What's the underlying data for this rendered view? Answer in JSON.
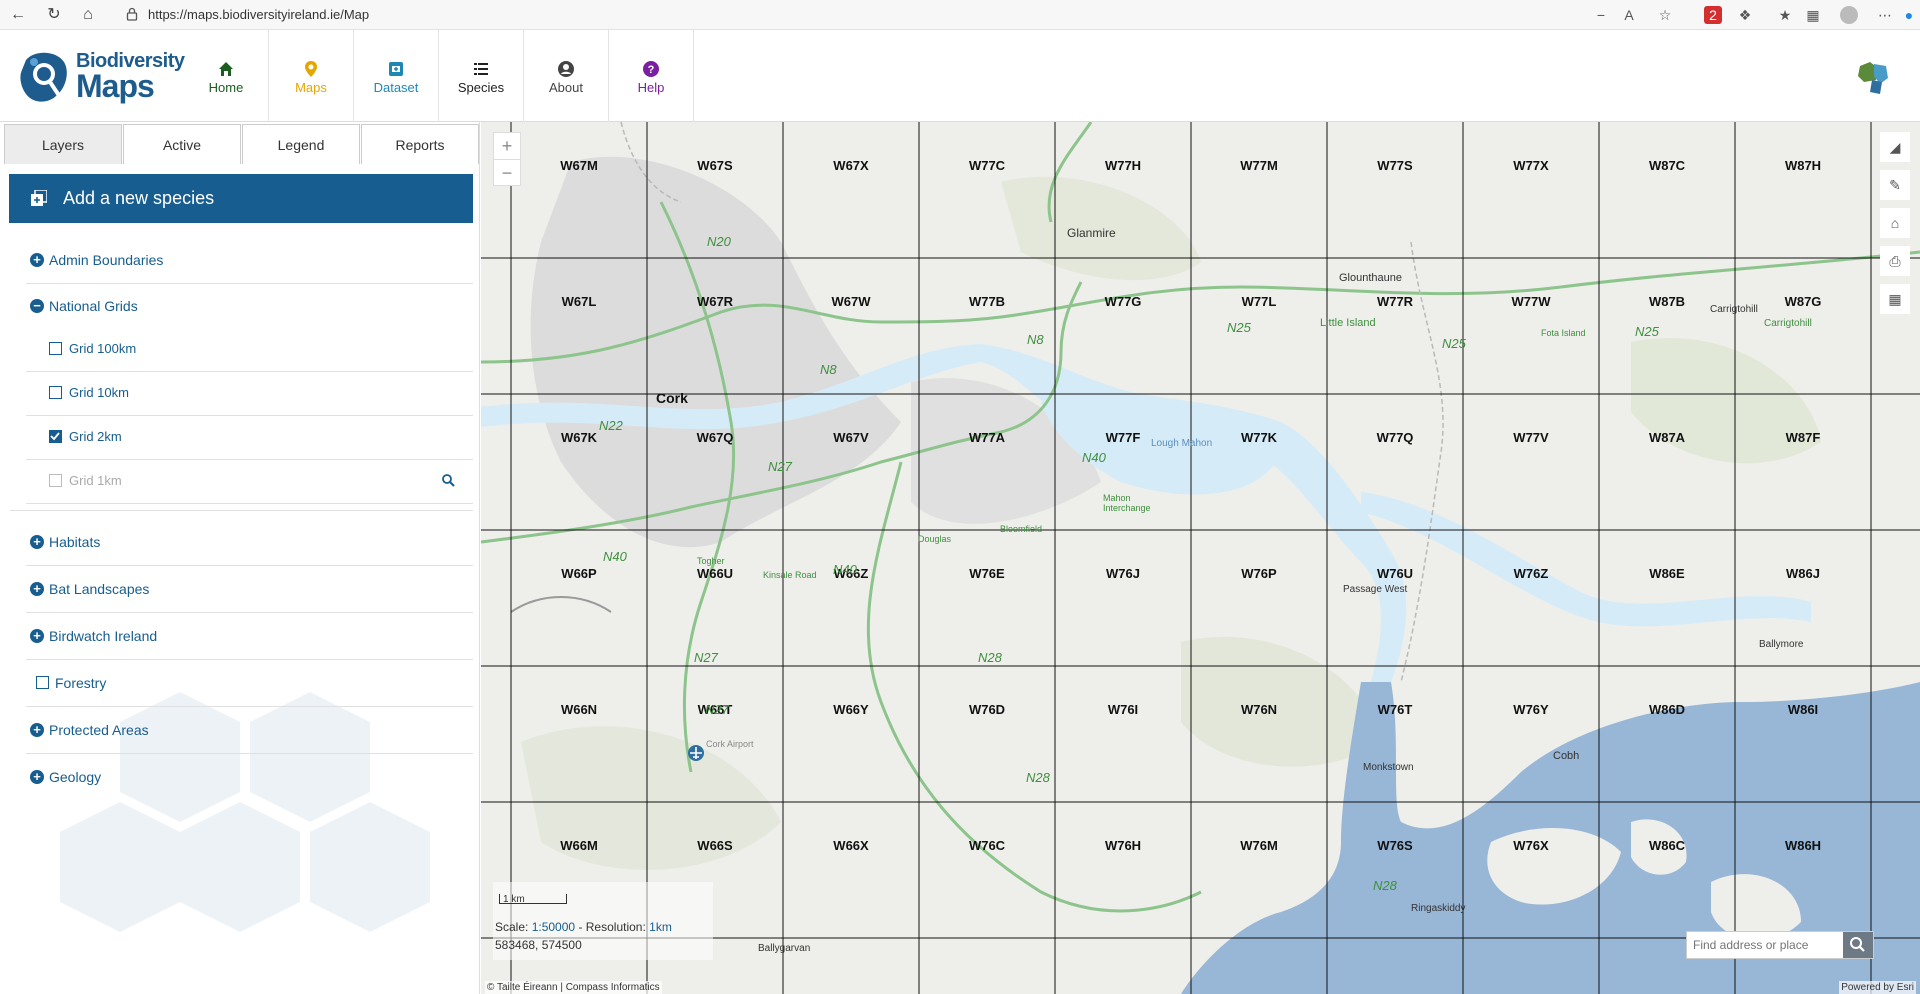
{
  "browser": {
    "url": "https://maps.biodiversityireland.ie/Map",
    "extension_badge": "2"
  },
  "header": {
    "logo_line1": "Biodiversity",
    "logo_line2": "Maps",
    "nav": [
      {
        "label": "Home",
        "icon": "home-icon",
        "color": "#1b5e20"
      },
      {
        "label": "Maps",
        "icon": "map-pin-icon",
        "color": "#e6a600"
      },
      {
        "label": "Dataset",
        "icon": "dataset-icon",
        "color": "#1e88b4"
      },
      {
        "label": "Species",
        "icon": "list-icon",
        "color": "#222222"
      },
      {
        "label": "About",
        "icon": "user-icon",
        "color": "#444444"
      },
      {
        "label": "Help",
        "icon": "help-icon",
        "color": "#7b1fa2"
      }
    ]
  },
  "sidebar": {
    "tabs": [
      "Layers",
      "Active",
      "Legend",
      "Reports"
    ],
    "active_tab": "Layers",
    "add_species_label": "Add a new species",
    "layers": {
      "admin": "Admin Boundaries",
      "national_grids": "National Grids",
      "grid100": "Grid 100km",
      "grid10": "Grid 10km",
      "grid2": "Grid 2km",
      "grid1": "Grid 1km",
      "habitats": "Habitats",
      "bat": "Bat Landscapes",
      "birdwatch": "Birdwatch Ireland",
      "forestry": "Forestry",
      "protected": "Protected Areas",
      "geology": "Geology"
    }
  },
  "map": {
    "grid_rows": [
      [
        "W67M",
        "W67S",
        "W67X",
        "W77C",
        "W77H",
        "W77M",
        "W77S",
        "W77X",
        "W87C",
        "W87H"
      ],
      [
        "W67L",
        "W67R",
        "W67W",
        "W77B",
        "W77G",
        "W77L",
        "W77R",
        "W77W",
        "W87B",
        "W87G"
      ],
      [
        "W67K",
        "W67Q",
        "W67V",
        "W77A",
        "W77F",
        "W77K",
        "W77Q",
        "W77V",
        "W87A",
        "W87F"
      ],
      [
        "W66P",
        "W66U",
        "W66Z",
        "W76E",
        "W76J",
        "W76P",
        "W76U",
        "W76Z",
        "W86E",
        "W86J"
      ],
      [
        "W66N",
        "W66T",
        "W66Y",
        "W76D",
        "W76I",
        "W76N",
        "W76T",
        "W76Y",
        "W86D",
        "W86I"
      ],
      [
        "W66M",
        "W66S",
        "W66X",
        "W76C",
        "W76H",
        "W76M",
        "W76S",
        "W76X",
        "W86C",
        "W86H"
      ]
    ],
    "places": {
      "cork": "Cork",
      "glanmire": "Glanmire",
      "glounthaune": "Glounthaune",
      "little_island": "Little Island",
      "fota": "Fota Island",
      "carrigtohill1": "Carrigtohill",
      "carrigtohill2": "Carrigtohill",
      "lough_mahon": "Lough Mahon",
      "mahon": "Mahon Interchange",
      "douglas": "Douglas",
      "bloomfield": "Bloomfield",
      "togher": "Togher",
      "kinsale": "Kinsale Road",
      "passage": "Passage West",
      "monkstown": "Monkstown",
      "cobh": "Cobh",
      "ballymore": "Ballymore",
      "airport": "Cork Airport",
      "ringaskiddy": "Ringaskiddy",
      "ballygarvan": "Ballygarvan"
    },
    "roads": {
      "n20": "N20",
      "n8a": "N8",
      "n8b": "N8",
      "n22": "N22",
      "n27a": "N27",
      "n25a": "N25",
      "n25b": "N25",
      "n25c": "N25",
      "n40a": "N40",
      "n40b": "N40",
      "n40c": "N40",
      "n27b": "N27",
      "n27c": "N27",
      "n28a": "N28",
      "n28b": "N28",
      "n28c": "N28"
    },
    "scale_bar_label": "1 km",
    "scale_prefix": "Scale:",
    "scale_value": "1:50000",
    "resolution_prefix": "- Resolution:",
    "resolution_value": "1km",
    "coordinates": "583468, 574500",
    "search_placeholder": "Find address or place",
    "attribution": "© Tailte Éireann | Compass Informatics",
    "powered_by": "Powered by Esri"
  }
}
